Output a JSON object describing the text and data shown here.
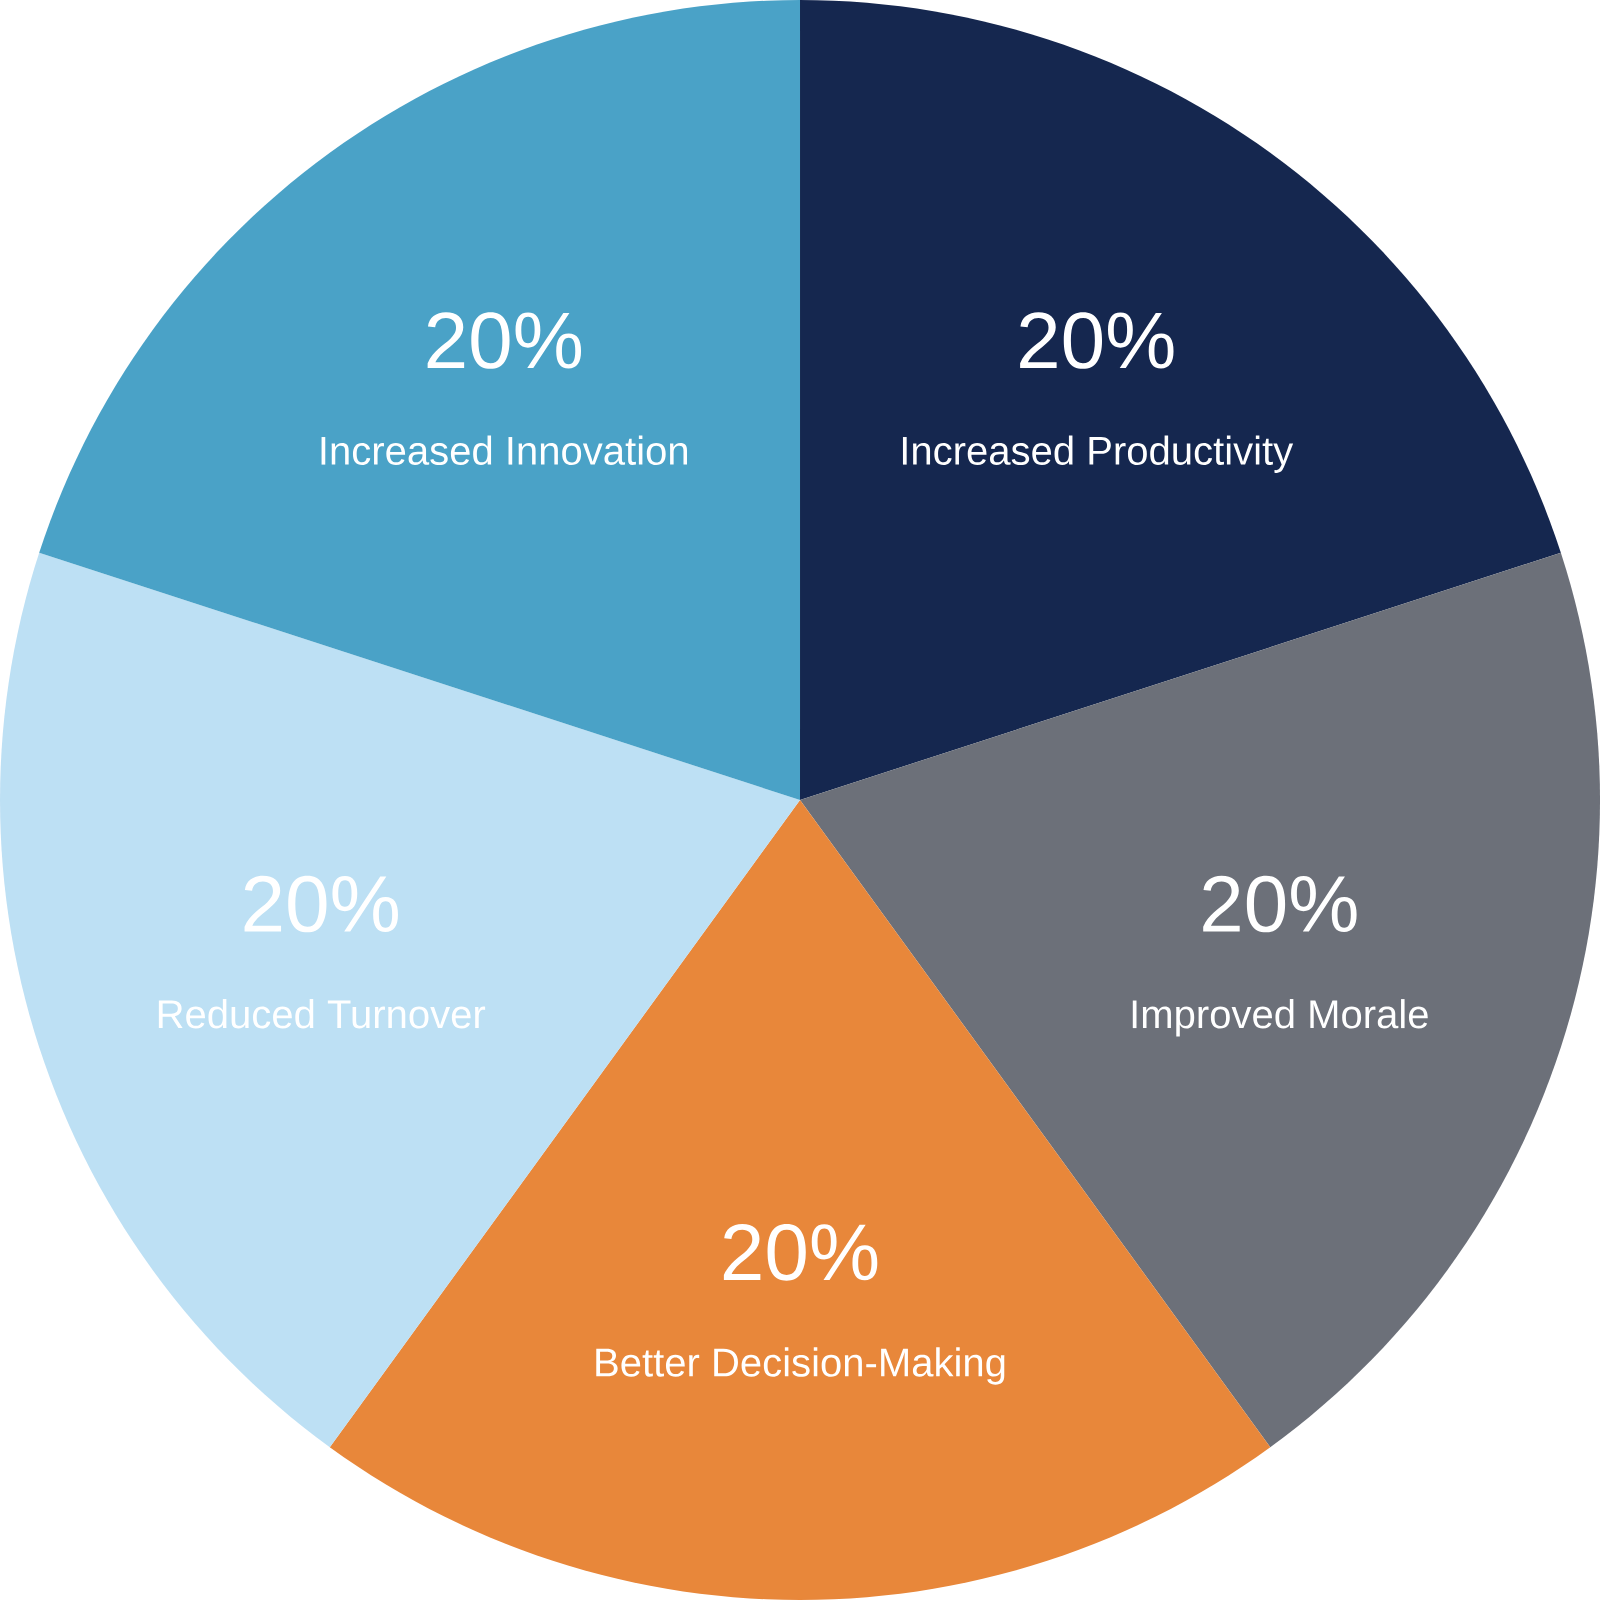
{
  "chart_data": {
    "type": "pie",
    "categories": [
      "Increased Productivity",
      "Improved Morale",
      "Better Decision-Making",
      "Reduced Turnover",
      "Increased Innovation"
    ],
    "values": [
      20,
      20,
      20,
      20,
      20
    ],
    "value_labels": [
      "20%",
      "20%",
      "20%",
      "20%",
      "20%"
    ],
    "colors": [
      "#15274f",
      "#6c7079",
      "#e8873a",
      "#bde0f4",
      "#4aa2c7"
    ]
  }
}
